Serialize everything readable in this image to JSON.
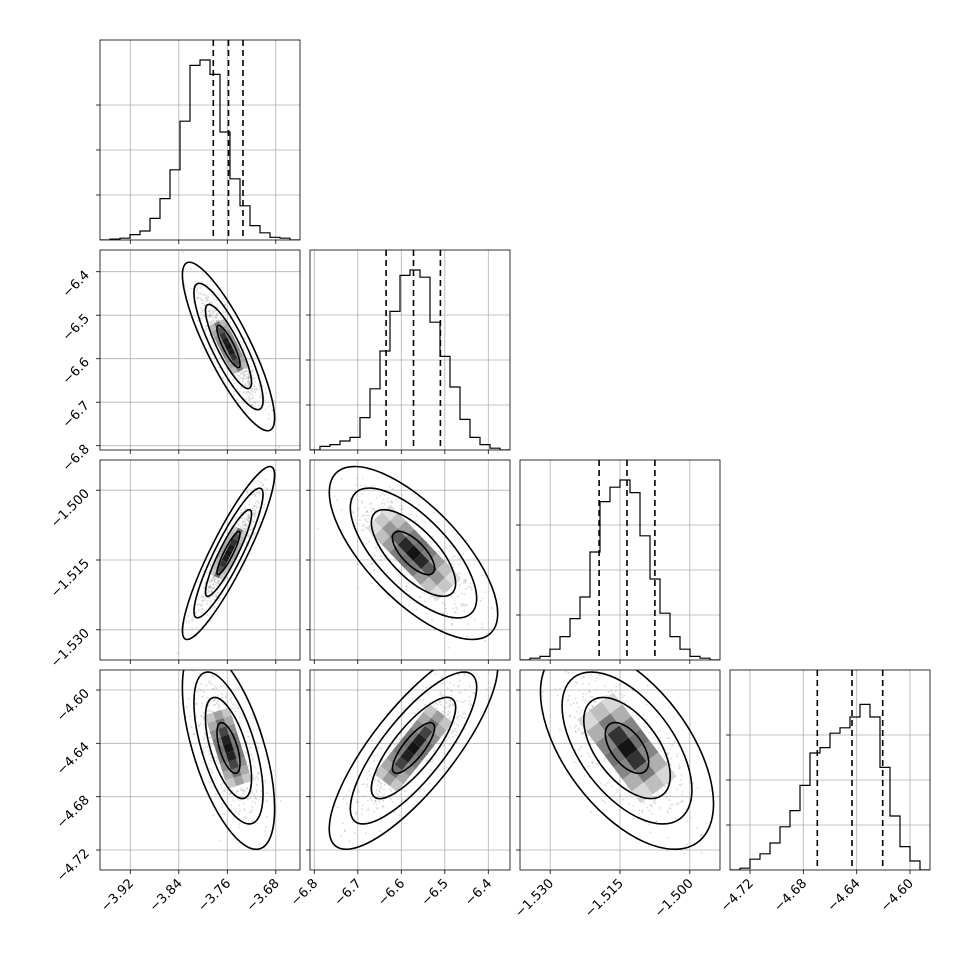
{
  "chart_data": {
    "type": "corner",
    "parameters": [
      {
        "ticks": [
          -3.92,
          -3.84,
          -3.76,
          -3.68
        ],
        "tick_labels": [
          "−3.92",
          "−3.84",
          "−3.76",
          "−3.68"
        ],
        "range": [
          -3.97,
          -3.64
        ],
        "quantiles": [
          -3.783,
          -3.758,
          -3.734
        ],
        "histogram": [
          0,
          0.005,
          0.01,
          0.03,
          0.05,
          0.12,
          0.23,
          0.39,
          0.66,
          0.97,
          1.0,
          0.92,
          0.6,
          0.34,
          0.19,
          0.08,
          0.04,
          0.015,
          0.01,
          0
        ]
      },
      {
        "ticks": [
          -6.8,
          -6.7,
          -6.6,
          -6.5,
          -6.4
        ],
        "tick_labels": [
          "−6.8",
          "−6.7",
          "−6.6",
          "−6.5",
          "−6.4"
        ],
        "range": [
          -6.81,
          -6.35
        ],
        "quantiles": [
          -6.635,
          -6.572,
          -6.51
        ],
        "histogram": [
          0,
          0.02,
          0.03,
          0.05,
          0.07,
          0.18,
          0.34,
          0.55,
          0.77,
          0.97,
          1.0,
          0.96,
          0.71,
          0.52,
          0.35,
          0.17,
          0.07,
          0.03,
          0.01,
          0
        ]
      },
      {
        "ticks": [
          -1.53,
          -1.515,
          -1.5
        ],
        "tick_labels": [
          "−1.530",
          "−1.515",
          "−1.500"
        ],
        "range": [
          -1.5365,
          -1.4935
        ],
        "quantiles": [
          -1.5195,
          -1.5135,
          -1.5075
        ],
        "histogram": [
          0,
          0.01,
          0.02,
          0.06,
          0.13,
          0.23,
          0.35,
          0.6,
          0.88,
          0.96,
          1.0,
          0.93,
          0.69,
          0.45,
          0.26,
          0.13,
          0.06,
          0.02,
          0.01,
          0
        ]
      },
      {
        "ticks": [
          -4.72,
          -4.68,
          -4.64,
          -4.6
        ],
        "tick_labels": [
          "−4.72",
          "−4.68",
          "−4.64",
          "−4.60"
        ],
        "range": [
          -4.735,
          -4.585
        ],
        "quantiles": [
          -4.6695,
          -4.6435,
          -4.6205
        ],
        "histogram": [
          0,
          0.01,
          0.06,
          0.09,
          0.15,
          0.24,
          0.33,
          0.47,
          0.65,
          0.68,
          0.76,
          0.79,
          0.85,
          0.92,
          0.85,
          0.57,
          0.3,
          0.13,
          0.05,
          0
        ]
      }
    ],
    "correlations": [
      [
        1,
        -0.85,
        0.9,
        -0.6
      ],
      [
        -0.85,
        1,
        -0.7,
        0.8
      ],
      [
        0.9,
        -0.7,
        1,
        -0.55
      ],
      [
        -0.6,
        0.8,
        -0.55,
        1
      ]
    ],
    "contour_sigma_levels": [
      0.5,
      1.0,
      1.5,
      2.0
    ],
    "grid": true
  },
  "colors": {
    "line": "#000000",
    "grid": "#b0b0b0",
    "scatter": "#9a9a9a",
    "density_max": "#000000"
  }
}
